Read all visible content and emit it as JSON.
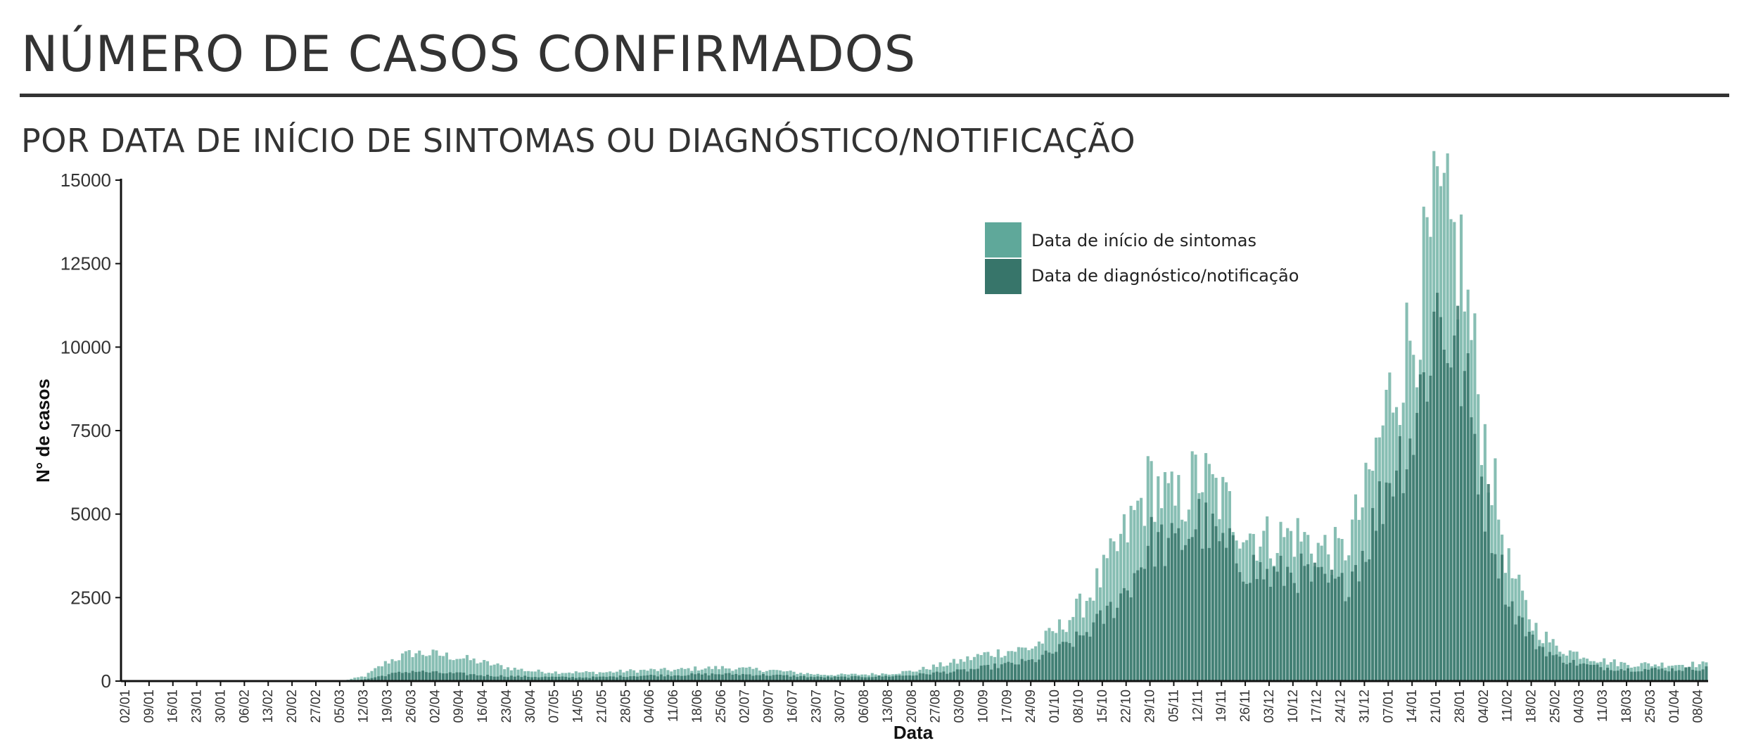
{
  "header": {
    "title": "NÚMERO DE CASOS CONFIRMADOS",
    "subtitle": "POR DATA DE INÍCIO DE SINTOMAS OU DIAGNÓSTICO/NOTIFICAÇÃO"
  },
  "chart_data": {
    "type": "bar",
    "xlabel": "Data",
    "ylabel": "N° de casos",
    "ylim": [
      0,
      15000
    ],
    "yticks": [
      0,
      2500,
      5000,
      7500,
      10000,
      12500,
      15000
    ],
    "x_range": [
      "2020-03-01",
      "2021-04-11"
    ],
    "xticks": [
      "02/01",
      "09/01",
      "16/01",
      "23/01",
      "30/01",
      "06/02",
      "13/02",
      "20/02",
      "27/02",
      "05/03",
      "12/03",
      "19/03",
      "26/03",
      "02/04",
      "09/04",
      "16/04",
      "23/04",
      "30/04",
      "07/05",
      "14/05",
      "21/05",
      "28/05",
      "04/06",
      "11/06",
      "18/06",
      "25/06",
      "02/07",
      "09/07",
      "16/07",
      "23/07",
      "30/07",
      "06/08",
      "13/08",
      "20/08",
      "27/08",
      "03/09",
      "10/09",
      "17/09",
      "24/09",
      "01/10",
      "08/10",
      "15/10",
      "22/10",
      "29/10",
      "05/11",
      "12/11",
      "19/11",
      "26/11",
      "03/12",
      "10/12",
      "17/12",
      "24/12",
      "31/12",
      "07/01",
      "14/01",
      "21/01",
      "28/01",
      "04/02",
      "11/02",
      "18/02",
      "25/02",
      "04/03",
      "11/03",
      "18/03",
      "25/03",
      "01/04",
      "08/04"
    ],
    "bar_overlay": true,
    "legend_position": "top-center",
    "series": [
      {
        "name": "Data de início de sintomas",
        "color": "#5fa89a",
        "weekly_values": [
          0,
          0,
          0,
          0,
          0,
          0,
          0,
          0,
          0,
          0,
          150,
          600,
          850,
          800,
          700,
          550,
          400,
          300,
          270,
          260,
          260,
          300,
          330,
          330,
          380,
          400,
          360,
          330,
          260,
          200,
          190,
          200,
          230,
          300,
          450,
          600,
          800,
          900,
          1000,
          1500,
          2200,
          3200,
          4500,
          6000,
          5200,
          6200,
          5400,
          4500,
          4200,
          4400,
          4000,
          3800,
          5500,
          8500,
          10500,
          13800,
          12500,
          7200,
          3400,
          1700,
          1000,
          800,
          600,
          500,
          500,
          500,
          500
        ]
      },
      {
        "name": "Data de diagnóstico/notificação",
        "color": "#37756a",
        "weekly_values": [
          0,
          0,
          0,
          0,
          0,
          0,
          0,
          0,
          0,
          0,
          50,
          200,
          300,
          250,
          220,
          170,
          150,
          130,
          120,
          110,
          120,
          150,
          170,
          180,
          200,
          210,
          200,
          180,
          150,
          120,
          120,
          130,
          150,
          180,
          250,
          300,
          400,
          500,
          600,
          900,
          1300,
          1900,
          2800,
          4200,
          4000,
          4800,
          4000,
          3500,
          3100,
          3300,
          3000,
          2800,
          4000,
          6200,
          7500,
          11200,
          9500,
          5500,
          2400,
          1200,
          700,
          500,
          400,
          350,
          350,
          350,
          380
        ]
      }
    ]
  }
}
